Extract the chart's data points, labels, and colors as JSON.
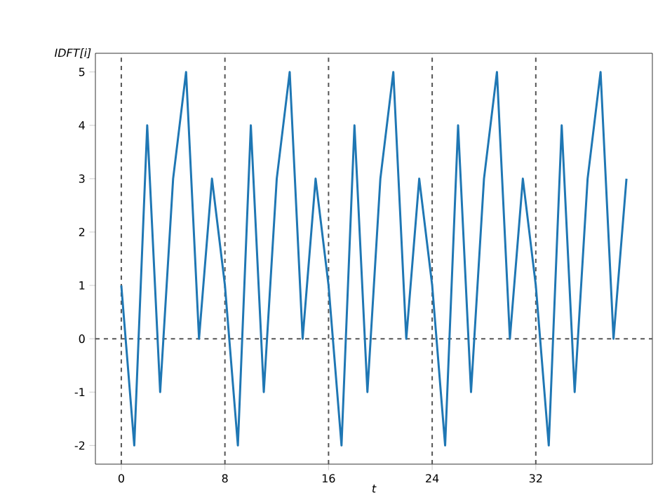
{
  "chart_data": {
    "type": "line",
    "xlabel": "t",
    "ylabel": "IDFT[i]",
    "x": [
      0,
      1,
      2,
      3,
      4,
      5,
      6,
      7,
      8,
      9,
      10,
      11,
      12,
      13,
      14,
      15,
      16,
      17,
      18,
      19,
      20,
      21,
      22,
      23,
      24,
      25,
      26,
      27,
      28,
      29,
      30,
      31,
      32,
      33,
      34,
      35,
      36,
      37,
      38,
      39
    ],
    "series": [
      {
        "color": "#1f77b4",
        "values": [
          1,
          -2,
          4,
          -1,
          3,
          5,
          0,
          3,
          1,
          -2,
          4,
          -1,
          3,
          5,
          0,
          3,
          1,
          -2,
          4,
          -1,
          3,
          5,
          0,
          3,
          1,
          -2,
          4,
          -1,
          3,
          5,
          0,
          3,
          1,
          -2,
          4,
          -1,
          3,
          5,
          0,
          3
        ]
      }
    ],
    "xlim": [
      -2,
      41
    ],
    "ylim": [
      -2.35,
      5.35
    ],
    "xticks": [
      0,
      8,
      16,
      24,
      32
    ],
    "yticks": [
      -2,
      -1,
      0,
      1,
      2,
      3,
      4,
      5
    ],
    "ref_lines": [
      {
        "axis": "x",
        "value": 0,
        "color": "#555555",
        "line_style": "dashed"
      },
      {
        "axis": "x",
        "value": 8,
        "color": "#555555",
        "line_style": "dashed"
      },
      {
        "axis": "x",
        "value": 16,
        "color": "#555555",
        "line_style": "dashed"
      },
      {
        "axis": "x",
        "value": 24,
        "color": "#555555",
        "line_style": "dashed"
      },
      {
        "axis": "x",
        "value": 32,
        "color": "#555555",
        "line_style": "dashed"
      },
      {
        "axis": "y",
        "value": 0,
        "color": "#555555",
        "line_style": "dashed"
      }
    ],
    "grid": false
  }
}
